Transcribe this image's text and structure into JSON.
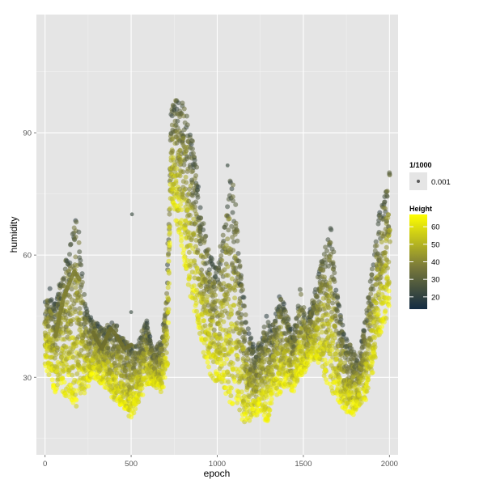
{
  "chart_data": {
    "type": "scatter",
    "xlabel": "epoch",
    "ylabel": "humidity",
    "xlim": [
      -50,
      2050
    ],
    "ylim": [
      11,
      119
    ],
    "x_ticks": [
      0,
      500,
      1000,
      1500,
      2000
    ],
    "x_tick_labels": [
      "0",
      "500",
      "1000",
      "1500",
      "2000"
    ],
    "y_ticks": [
      30,
      60,
      90
    ],
    "y_tick_labels": [
      "30",
      "60",
      "90"
    ],
    "grid": true,
    "background": "#e5e5e5",
    "legend_position": "right",
    "size_legend": {
      "title": "1/1000",
      "label": "0.001"
    },
    "color_legend": {
      "title": "Height",
      "ticks": [
        20,
        30,
        40,
        50,
        60
      ],
      "tick_labels": [
        "20",
        "30",
        "40",
        "50",
        "60"
      ],
      "range": [
        13,
        67
      ],
      "low_color": "#132b43",
      "mid_color": "#7a7a3a",
      "high_color": "#ffff00"
    },
    "upper_envelope": [
      [
        0,
        49
      ],
      [
        30,
        52
      ],
      [
        60,
        48
      ],
      [
        100,
        56
      ],
      [
        150,
        64
      ],
      [
        190,
        70
      ],
      [
        230,
        48
      ],
      [
        280,
        44
      ],
      [
        340,
        42
      ],
      [
        400,
        44
      ],
      [
        460,
        40
      ],
      [
        500,
        38
      ],
      [
        550,
        40
      ],
      [
        590,
        44
      ],
      [
        630,
        36
      ],
      [
        680,
        40
      ],
      [
        710,
        58
      ],
      [
        730,
        95
      ],
      [
        760,
        100
      ],
      [
        800,
        98
      ],
      [
        840,
        92
      ],
      [
        880,
        82
      ],
      [
        900,
        72
      ],
      [
        930,
        66
      ],
      [
        960,
        60
      ],
      [
        1000,
        58
      ],
      [
        1040,
        70
      ],
      [
        1070,
        80
      ],
      [
        1100,
        76
      ],
      [
        1130,
        60
      ],
      [
        1170,
        44
      ],
      [
        1220,
        36
      ],
      [
        1260,
        40
      ],
      [
        1290,
        46
      ],
      [
        1320,
        42
      ],
      [
        1360,
        50
      ],
      [
        1400,
        48
      ],
      [
        1440,
        40
      ],
      [
        1480,
        52
      ],
      [
        1520,
        44
      ],
      [
        1560,
        50
      ],
      [
        1600,
        58
      ],
      [
        1640,
        64
      ],
      [
        1660,
        68
      ],
      [
        1700,
        50
      ],
      [
        1740,
        40
      ],
      [
        1780,
        38
      ],
      [
        1820,
        34
      ],
      [
        1860,
        44
      ],
      [
        1900,
        58
      ],
      [
        1940,
        70
      ],
      [
        1980,
        76
      ],
      [
        2000,
        82
      ]
    ],
    "lower_envelope": [
      [
        0,
        33
      ],
      [
        30,
        30
      ],
      [
        60,
        26
      ],
      [
        100,
        26
      ],
      [
        150,
        24
      ],
      [
        190,
        22
      ],
      [
        230,
        26
      ],
      [
        280,
        30
      ],
      [
        340,
        28
      ],
      [
        400,
        24
      ],
      [
        460,
        22
      ],
      [
        500,
        20
      ],
      [
        550,
        24
      ],
      [
        590,
        28
      ],
      [
        630,
        28
      ],
      [
        680,
        26
      ],
      [
        710,
        32
      ],
      [
        730,
        72
      ],
      [
        760,
        68
      ],
      [
        800,
        60
      ],
      [
        840,
        50
      ],
      [
        880,
        44
      ],
      [
        900,
        40
      ],
      [
        930,
        34
      ],
      [
        960,
        30
      ],
      [
        1000,
        28
      ],
      [
        1040,
        26
      ],
      [
        1070,
        24
      ],
      [
        1100,
        22
      ],
      [
        1130,
        20
      ],
      [
        1170,
        18
      ],
      [
        1220,
        20
      ],
      [
        1260,
        22
      ],
      [
        1290,
        18
      ],
      [
        1320,
        24
      ],
      [
        1360,
        26
      ],
      [
        1400,
        28
      ],
      [
        1440,
        26
      ],
      [
        1480,
        30
      ],
      [
        1520,
        32
      ],
      [
        1560,
        34
      ],
      [
        1600,
        32
      ],
      [
        1640,
        28
      ],
      [
        1660,
        26
      ],
      [
        1700,
        24
      ],
      [
        1740,
        22
      ],
      [
        1780,
        20
      ],
      [
        1820,
        22
      ],
      [
        1860,
        24
      ],
      [
        1900,
        30
      ],
      [
        1940,
        40
      ],
      [
        1980,
        44
      ],
      [
        2000,
        48
      ]
    ],
    "smooth_segments": [
      {
        "color": "#7e7e30",
        "points": [
          [
            60,
            40
          ],
          [
            110,
            50
          ],
          [
            170,
            56
          ],
          [
            200,
            54
          ]
        ]
      },
      {
        "color": "#6f6f2c",
        "points": [
          [
            280,
            41
          ],
          [
            330,
            37
          ],
          [
            380,
            42
          ],
          [
            420,
            40
          ],
          [
            460,
            37
          ],
          [
            500,
            38
          ]
        ]
      }
    ],
    "outliers": [
      [
        505,
        70
      ],
      [
        500,
        46
      ],
      [
        1060,
        82
      ]
    ]
  }
}
